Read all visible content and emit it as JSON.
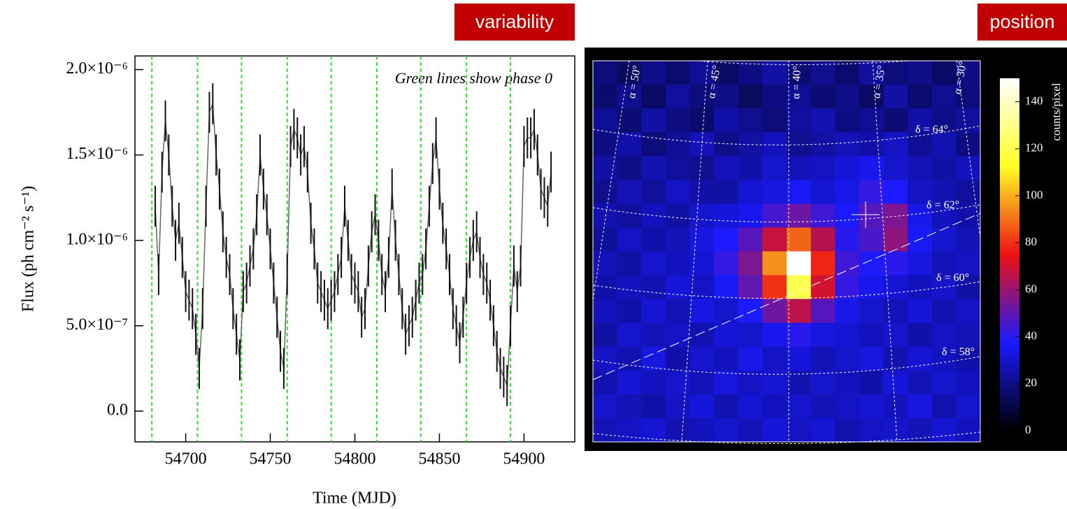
{
  "chart_data": [
    {
      "type": "line",
      "header": "variability",
      "annotation": "Green lines show phase 0",
      "xlabel": "Time (MJD)",
      "ylabel": "Flux (ph cm⁻² s⁻¹)",
      "x": [
        54682,
        54684,
        54686,
        54688,
        54690,
        54692,
        54694,
        54696,
        54698,
        54700,
        54702,
        54704,
        54706,
        54708,
        54710,
        54712,
        54714,
        54716,
        54718,
        54720,
        54722,
        54724,
        54726,
        54728,
        54730,
        54732,
        54734,
        54736,
        54738,
        54740,
        54742,
        54744,
        54746,
        54748,
        54750,
        54752,
        54754,
        54756,
        54758,
        54760,
        54762,
        54764,
        54766,
        54768,
        54770,
        54772,
        54774,
        54776,
        54778,
        54780,
        54782,
        54784,
        54786,
        54788,
        54790,
        54792,
        54794,
        54796,
        54798,
        54800,
        54802,
        54804,
        54806,
        54808,
        54810,
        54812,
        54814,
        54816,
        54818,
        54820,
        54822,
        54824,
        54826,
        54828,
        54830,
        54832,
        54834,
        54836,
        54838,
        54840,
        54842,
        54844,
        54846,
        54848,
        54850,
        54852,
        54854,
        54856,
        54858,
        54860,
        54862,
        54864,
        54866,
        54868,
        54870,
        54872,
        54874,
        54876,
        54878,
        54880,
        54882,
        54884,
        54886,
        54888,
        54890,
        54892,
        54894,
        54896,
        54898,
        54900,
        54902,
        54904,
        54906,
        54908,
        54910,
        54912,
        54914,
        54916
      ],
      "values": [
        1.2e-06,
        8e-07,
        1.4e-06,
        1.7e-06,
        1.5e-06,
        1.2e-06,
        1e-06,
        1.1e-06,
        9e-07,
        7e-07,
        6.5e-07,
        6e-07,
        4.5e-07,
        2.5e-07,
        6e-07,
        1.2e-06,
        1.75e-06,
        1.8e-06,
        1.5e-06,
        1.3e-06,
        1.05e-06,
        9e-07,
        8e-07,
        6e-07,
        4.5e-07,
        3e-07,
        7e-07,
        7.5e-07,
        8.5e-07,
        9.5e-07,
        1.15e-06,
        1.5e-06,
        1.3e-06,
        1.15e-06,
        9.5e-07,
        7.5e-07,
        5.5e-07,
        3.5e-07,
        2.5e-07,
        8e-07,
        1.55e-06,
        1.65e-06,
        1.6e-06,
        1.5e-06,
        1.55e-06,
        1.4e-06,
        1.1e-06,
        9.5e-07,
        7.5e-07,
        7e-07,
        6.5e-07,
        6e-07,
        6.5e-07,
        7e-07,
        8e-07,
        9e-07,
        1.2e-06,
        1e-06,
        8e-07,
        7.5e-07,
        7e-07,
        5.5e-07,
        6e-07,
        8.5e-07,
        1.05e-06,
        1.15e-06,
        1e-06,
        8e-07,
        7e-07,
        9e-07,
        1.3e-06,
        1e-06,
        8e-07,
        6e-07,
        4.5e-07,
        5e-07,
        5.5e-07,
        6.5e-07,
        7.5e-07,
        8e-07,
        9.5e-07,
        1.2e-06,
        1.45e-06,
        1.6e-06,
        1.3e-06,
        1.1e-06,
        9.5e-07,
        8e-07,
        6e-07,
        5e-07,
        4e-07,
        5.5e-07,
        7.5e-07,
        9e-07,
        1e-06,
        1.05e-06,
        9e-07,
        8e-07,
        7.5e-07,
        6.5e-07,
        5e-07,
        3.5e-07,
        2.5e-07,
        2e-07,
        1.5e-07,
        5e-07,
        8.5e-07,
        7e-07,
        8.5e-07,
        1.55e-06,
        1.6e-06,
        1.6e-06,
        1.65e-06,
        1.5e-06,
        1.3e-06,
        1.25e-06,
        1.2e-06,
        1.4e-06
      ],
      "errors": [
        1.2e-07,
        1.2e-07,
        1.2e-07,
        1.2e-07,
        1.2e-07,
        1.2e-07,
        1.2e-07,
        1.2e-07,
        1.2e-07,
        1.2e-07,
        1.2e-07,
        1.2e-07,
        1.2e-07,
        1.2e-07,
        1.2e-07,
        1.2e-07,
        1.2e-07,
        1.2e-07,
        1.2e-07,
        1.2e-07,
        1.2e-07,
        1.2e-07,
        1.2e-07,
        1.2e-07,
        1.2e-07,
        1.2e-07,
        1.2e-07,
        1.2e-07,
        1.2e-07,
        1.2e-07,
        1.2e-07,
        1.2e-07,
        1.2e-07,
        1.2e-07,
        1.2e-07,
        1.2e-07,
        1.2e-07,
        1.2e-07,
        1.2e-07,
        1.2e-07,
        1.2e-07,
        1.2e-07,
        1.2e-07,
        1.2e-07,
        1.2e-07,
        1.2e-07,
        1.2e-07,
        1.2e-07,
        1.2e-07,
        1.2e-07,
        1.2e-07,
        1.2e-07,
        1.2e-07,
        1.2e-07,
        1.2e-07,
        1.2e-07,
        1.2e-07,
        1.2e-07,
        1.2e-07,
        1.2e-07,
        1.2e-07,
        1.2e-07,
        1.2e-07,
        1.2e-07,
        1.2e-07,
        1.2e-07,
        1.2e-07,
        1.2e-07,
        1.2e-07,
        1.2e-07,
        1.2e-07,
        1.2e-07,
        1.2e-07,
        1.2e-07,
        1.2e-07,
        1.2e-07,
        1.2e-07,
        1.2e-07,
        1.2e-07,
        1.2e-07,
        1.2e-07,
        1.2e-07,
        1.2e-07,
        1.2e-07,
        1.2e-07,
        1.2e-07,
        1.2e-07,
        1.2e-07,
        1.2e-07,
        1.2e-07,
        1.2e-07,
        1.2e-07,
        1.2e-07,
        1.2e-07,
        1.2e-07,
        1.2e-07,
        1.2e-07,
        1.2e-07,
        1.2e-07,
        1.2e-07,
        1.2e-07,
        1.2e-07,
        1.2e-07,
        1.2e-07,
        1.2e-07,
        1.2e-07,
        1.2e-07,
        1.2e-07,
        1.2e-07,
        1.2e-07,
        1.2e-07,
        1.2e-07,
        1.2e-07,
        1.2e-07,
        1.2e-07,
        1.2e-07,
        1.2e-07,
        1.2e-07
      ],
      "color": "#666666",
      "error_color": "#111111",
      "phase_lines": [
        54680,
        54707,
        54733,
        54760,
        54786,
        54813,
        54839,
        54866,
        54892
      ],
      "phase_line_color": "#33dd33",
      "xlim": [
        54670,
        54930
      ],
      "xticks": [
        54700,
        54750,
        54800,
        54850,
        54900
      ],
      "ylim": [
        -1.8e-07,
        2.08e-06
      ],
      "yticks": [
        {
          "value": 0,
          "label": "0.0"
        },
        {
          "value": 5e-07,
          "label": "5.0×10⁻⁷"
        },
        {
          "value": 1e-06,
          "label": "1.0×10⁻⁶"
        },
        {
          "value": 1.5e-06,
          "label": "1.5×10⁻⁶"
        },
        {
          "value": 2e-06,
          "label": "2.0×10⁻⁶"
        }
      ]
    },
    {
      "type": "heatmap",
      "header": "position",
      "colorbar_label": "counts/pixel",
      "ra_labels": [
        "α = 50°",
        "α = 45°",
        "α = 40°",
        "α = 35°",
        "α = 30°"
      ],
      "dec_labels": [
        "δ = 64°",
        "δ = 62°",
        "δ = 60°",
        "δ = 58°"
      ],
      "values": [
        [
          18,
          14,
          20,
          16,
          22,
          15,
          19,
          24,
          17,
          21,
          16,
          23,
          18,
          20,
          15,
          19
        ],
        [
          16,
          21,
          15,
          23,
          18,
          20,
          14,
          19,
          22,
          17,
          20,
          15,
          24,
          16,
          21,
          18
        ],
        [
          22,
          17,
          24,
          19,
          16,
          25,
          21,
          18,
          23,
          26,
          19,
          22,
          17,
          25,
          20,
          23
        ],
        [
          19,
          25,
          18,
          22,
          27,
          20,
          24,
          28,
          21,
          24,
          27,
          25,
          29,
          22,
          26,
          19
        ],
        [
          24,
          20,
          26,
          23,
          21,
          28,
          25,
          30,
          27,
          29,
          32,
          35,
          30,
          27,
          24,
          28
        ],
        [
          21,
          27,
          23,
          29,
          25,
          24,
          31,
          33,
          36,
          31,
          34,
          42,
          38,
          29,
          26,
          23
        ],
        [
          26,
          23,
          28,
          24,
          30,
          32,
          35,
          45,
          52,
          44,
          37,
          48,
          55,
          34,
          28,
          25
        ],
        [
          23,
          29,
          25,
          27,
          33,
          38,
          48,
          68,
          88,
          65,
          40,
          46,
          58,
          36,
          30,
          27
        ],
        [
          27,
          24,
          30,
          28,
          31,
          42,
          55,
          95,
          150,
          78,
          44,
          38,
          40,
          33,
          27,
          29
        ],
        [
          25,
          28,
          26,
          32,
          29,
          36,
          50,
          80,
          120,
          70,
          42,
          35,
          31,
          28,
          30,
          24
        ],
        [
          28,
          25,
          31,
          27,
          33,
          30,
          38,
          52,
          66,
          48,
          34,
          30,
          27,
          32,
          26,
          29
        ],
        [
          24,
          30,
          27,
          29,
          26,
          32,
          30,
          35,
          40,
          33,
          31,
          28,
          30,
          25,
          29,
          27
        ],
        [
          29,
          26,
          33,
          25,
          30,
          28,
          34,
          29,
          32,
          27,
          30,
          33,
          26,
          31,
          28,
          25
        ],
        [
          26,
          31,
          28,
          30,
          27,
          33,
          29,
          31,
          26,
          30,
          28,
          25,
          32,
          27,
          30,
          28
        ],
        [
          30,
          27,
          25,
          29,
          32,
          26,
          31,
          28,
          30,
          27,
          29,
          31,
          28,
          33,
          26,
          30
        ],
        [
          27,
          29,
          31,
          26,
          28,
          30,
          27,
          32,
          29,
          31,
          26,
          29,
          30,
          27,
          31,
          28
        ]
      ],
      "zlim": [
        0,
        150
      ],
      "zticks": [
        0,
        20,
        40,
        60,
        80,
        100,
        120,
        140
      ],
      "colors": [
        "#000000",
        "#1a1aff",
        "#ee1111",
        "#ffff22",
        "#ffffff"
      ]
    }
  ]
}
